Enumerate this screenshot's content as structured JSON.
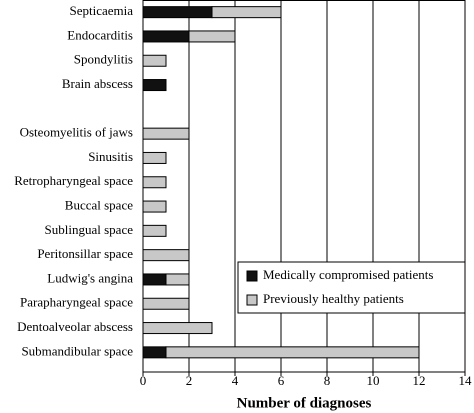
{
  "chart_data": {
    "type": "hbar_stacked",
    "xlabel": "Number of diagnoses",
    "categories": [
      "Septicaemia",
      "Endocarditis",
      "Spondylitis",
      "Brain abscess",
      null,
      "Osteomyelitis of jaws",
      "Sinusitis",
      "Retropharyngeal space",
      "Buccal space",
      "Sublingual space",
      "Peritonsillar space",
      "Ludwig's angina",
      "Parapharyngeal space",
      "Dentoalveolar abscess",
      "Submandibular space"
    ],
    "series": [
      {
        "name": "Medically compromised patients",
        "color": "#111111",
        "values": [
          3,
          2,
          0,
          1,
          null,
          0,
          0,
          0,
          0,
          0,
          0,
          1,
          0,
          0,
          1
        ]
      },
      {
        "name": "Previously healthy patients",
        "color": "#c8c8c8",
        "values": [
          3,
          2,
          1,
          0,
          null,
          2,
          1,
          1,
          1,
          1,
          2,
          1,
          2,
          3,
          11
        ]
      }
    ],
    "xlim": [
      0,
      14
    ],
    "xticks": [
      0,
      2,
      4,
      6,
      8,
      10,
      12,
      14
    ],
    "grid": true,
    "legend": "lower right"
  }
}
